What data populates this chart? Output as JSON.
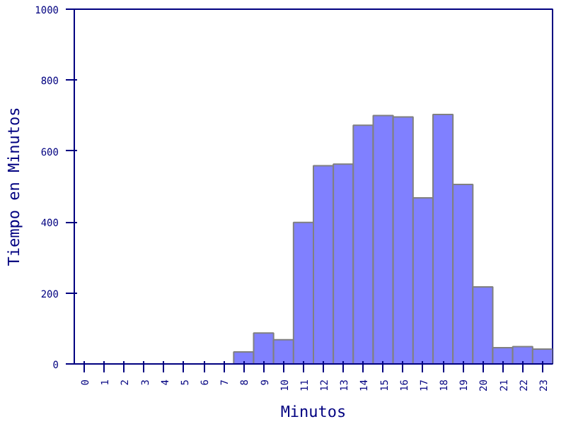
{
  "chart_data": {
    "type": "bar",
    "xlabel": "Minutos",
    "ylabel": "Tiempo en Minutos",
    "categories": [
      "0",
      "1",
      "2",
      "3",
      "4",
      "5",
      "6",
      "7",
      "8",
      "9",
      "10",
      "11",
      "12",
      "13",
      "14",
      "15",
      "16",
      "17",
      "18",
      "19",
      "20",
      "21",
      "22",
      "23"
    ],
    "values": [
      0,
      0,
      0,
      0,
      0,
      0,
      0,
      0,
      34,
      87,
      68,
      399,
      559,
      563,
      673,
      700,
      696,
      468,
      703,
      506,
      217,
      46,
      49,
      42
    ],
    "color": "#8080ff",
    "ylim": [
      0,
      1000
    ],
    "yticks": [
      0,
      200,
      400,
      600,
      800,
      1000
    ],
    "grid": false
  }
}
